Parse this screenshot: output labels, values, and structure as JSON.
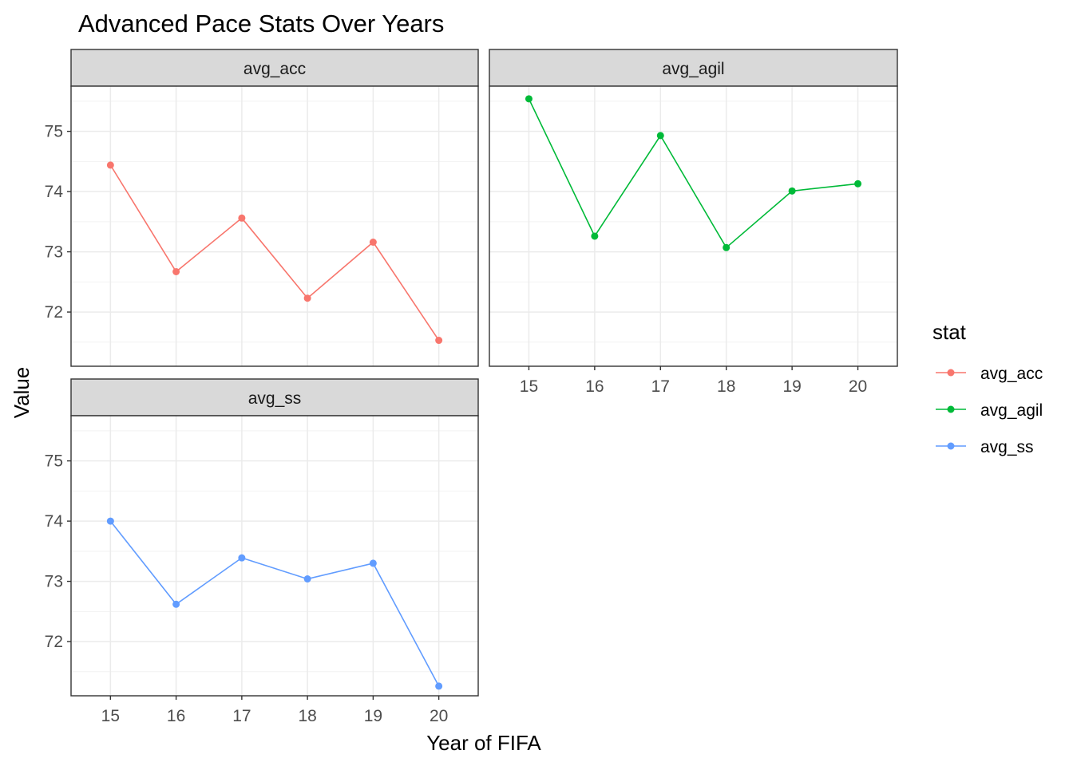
{
  "chart_data": {
    "type": "line",
    "title": "Advanced Pace Stats Over Years",
    "xlabel": "Year of FIFA",
    "ylabel": "Value",
    "x": [
      15,
      16,
      17,
      18,
      19,
      20
    ],
    "xticks": [
      "15",
      "16",
      "17",
      "18",
      "19",
      "20"
    ],
    "yticks": [
      72,
      73,
      74,
      75
    ],
    "ylim": [
      71.1,
      75.75
    ],
    "xlim": [
      14.4,
      20.6
    ],
    "grid": true,
    "facets": [
      "avg_acc",
      "avg_agil",
      "avg_ss"
    ],
    "series": [
      {
        "name": "avg_acc",
        "color": "#F8766D",
        "values": [
          74.44,
          72.67,
          73.56,
          72.23,
          73.16,
          71.53
        ]
      },
      {
        "name": "avg_agil",
        "color": "#00BA38",
        "values": [
          75.54,
          73.26,
          74.93,
          73.07,
          74.01,
          74.13
        ]
      },
      {
        "name": "avg_ss",
        "color": "#619CFF",
        "values": [
          74.0,
          72.62,
          73.39,
          73.04,
          73.3,
          71.26
        ]
      }
    ],
    "legend": {
      "title": "stat",
      "position": "right",
      "entries": [
        "avg_acc",
        "avg_agil",
        "avg_ss"
      ]
    }
  }
}
